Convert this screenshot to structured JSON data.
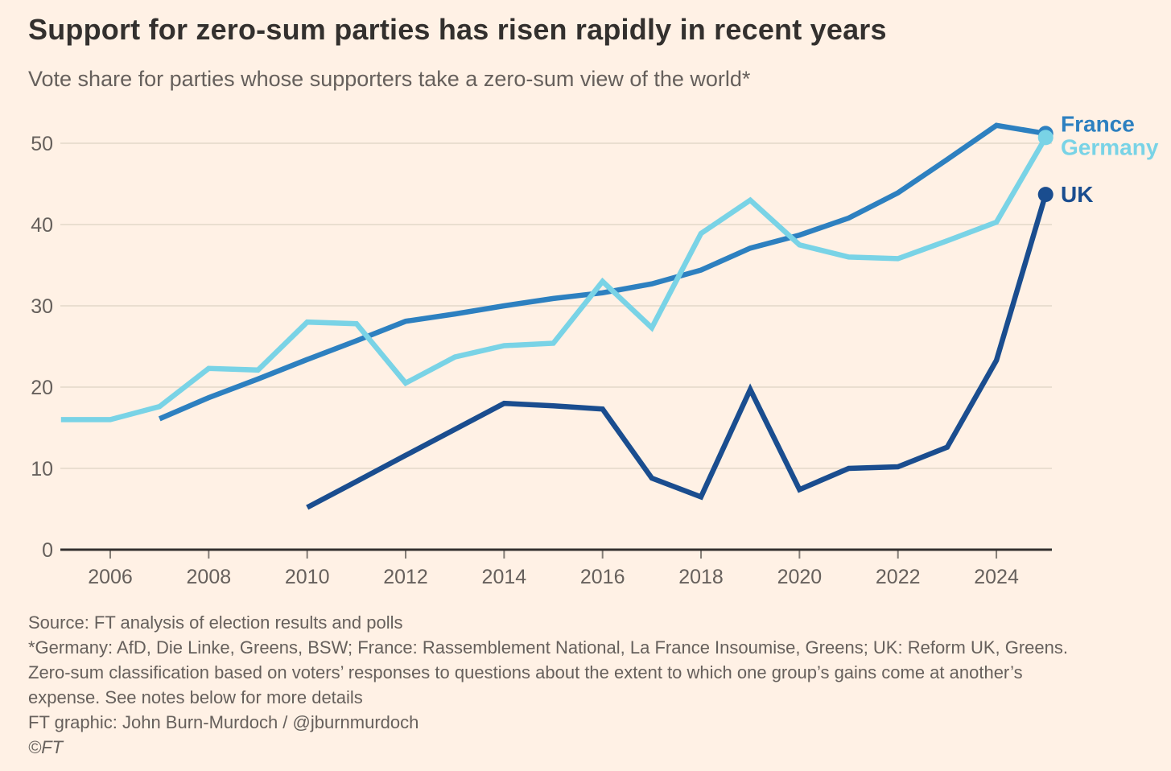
{
  "title": "Support for zero-sum parties has risen rapidly in recent years",
  "subtitle": "Vote share for parties whose supporters take a zero-sum view of the world*",
  "footer": {
    "lines": [
      "Source: FT analysis of election results and polls",
      "*Germany: AfD, Die Linke, Greens, BSW; France: Rassemblement National, La France Insoumise, Greens; UK: Reform UK, Greens.",
      "Zero-sum classification based on voters’ responses to questions about the extent to which one group’s gains come at another’s",
      "expense. See notes below for more details",
      "FT graphic: John Burn-Murdoch / @jburnmurdoch",
      "©FT"
    ]
  },
  "colors": {
    "background": "#FFF1E5",
    "title_text": "#33302E",
    "secondary_text": "#66605C",
    "gridline": "#E4D8CA",
    "axis": "#33302E",
    "tick": "#847D76",
    "france": "#2D80C0",
    "germany": "#79D3E6",
    "uk": "#1A4D8F"
  },
  "chart_data": {
    "type": "line",
    "title": "Support for zero-sum parties has risen rapidly in recent years",
    "subtitle": "Vote share for parties whose supporters take a zero-sum view of the world*",
    "unit": "vote share (%)",
    "x_ticks": [
      2006,
      2008,
      2010,
      2012,
      2014,
      2016,
      2018,
      2020,
      2022,
      2024
    ],
    "y_ticks": [
      0,
      10,
      20,
      30,
      40,
      50
    ],
    "x_range": [
      2005,
      2025.3
    ],
    "y_range": [
      0,
      52.5
    ],
    "grid": "horizontal-only",
    "legend_position": "right-of-line-ends",
    "series": [
      {
        "name": "France",
        "color": "#2D80C0",
        "label_dy": -12,
        "end_dot": true,
        "points": [
          [
            2007,
            16.1
          ],
          [
            2008,
            18.7
          ],
          [
            2009,
            21.0
          ],
          [
            2010,
            23.4
          ],
          [
            2011,
            25.7
          ],
          [
            2012,
            28.1
          ],
          [
            2013,
            29.0
          ],
          [
            2014,
            30.0
          ],
          [
            2015,
            30.9
          ],
          [
            2016,
            31.6
          ],
          [
            2017,
            32.7
          ],
          [
            2018,
            34.4
          ],
          [
            2019,
            37.1
          ],
          [
            2020,
            38.7
          ],
          [
            2021,
            40.8
          ],
          [
            2022,
            43.9
          ],
          [
            2023,
            48.0
          ],
          [
            2024,
            52.2
          ],
          [
            2025,
            51.2
          ]
        ]
      },
      {
        "name": "Germany",
        "color": "#79D3E6",
        "label_dy": 12,
        "end_dot": true,
        "points": [
          [
            2005,
            16.0
          ],
          [
            2006,
            16.0
          ],
          [
            2007,
            17.6
          ],
          [
            2008,
            22.3
          ],
          [
            2009,
            22.1
          ],
          [
            2010,
            28.0
          ],
          [
            2011,
            27.8
          ],
          [
            2012,
            20.5
          ],
          [
            2013,
            23.7
          ],
          [
            2014,
            25.1
          ],
          [
            2015,
            25.4
          ],
          [
            2016,
            33.0
          ],
          [
            2017,
            27.3
          ],
          [
            2018,
            38.9
          ],
          [
            2019,
            43.0
          ],
          [
            2020,
            37.5
          ],
          [
            2021,
            36.0
          ],
          [
            2022,
            35.8
          ],
          [
            2023,
            38.0
          ],
          [
            2024,
            40.3
          ],
          [
            2025,
            50.7
          ]
        ]
      },
      {
        "name": "UK",
        "color": "#1A4D8F",
        "label_dy": 0,
        "end_dot": true,
        "points": [
          [
            2010,
            5.2
          ],
          [
            2011,
            8.4
          ],
          [
            2012,
            11.6
          ],
          [
            2013,
            14.8
          ],
          [
            2014,
            18.0
          ],
          [
            2015,
            17.7
          ],
          [
            2016,
            17.3
          ],
          [
            2017,
            8.8
          ],
          [
            2018,
            6.5
          ],
          [
            2019,
            19.7
          ],
          [
            2020,
            7.4
          ],
          [
            2021,
            10.0
          ],
          [
            2022,
            10.2
          ],
          [
            2023,
            12.6
          ],
          [
            2024,
            23.3
          ],
          [
            2025,
            43.7
          ]
        ]
      }
    ]
  }
}
